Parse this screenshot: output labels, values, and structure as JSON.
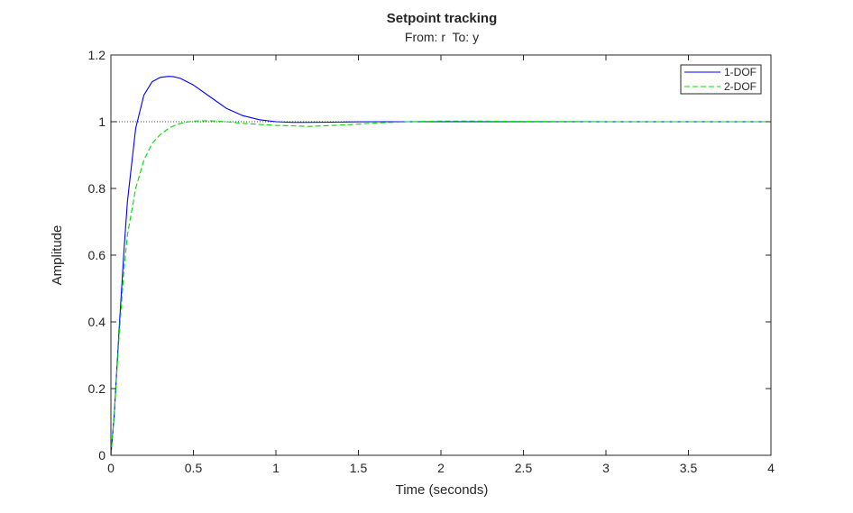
{
  "chart_data": {
    "type": "line",
    "title": "Setpoint tracking",
    "subtitle": "From: r  To: y",
    "xlabel": "Time (seconds)",
    "ylabel": "Amplitude",
    "xlim": [
      0,
      4
    ],
    "ylim": [
      0,
      1.2
    ],
    "x_ticks": [
      "0",
      "0.5",
      "1",
      "1.5",
      "2",
      "2.5",
      "3",
      "3.5",
      "4"
    ],
    "y_ticks": [
      "0",
      "0.2",
      "0.4",
      "0.6",
      "0.8",
      "1",
      "1.2"
    ],
    "grid": false,
    "legend_position": "top-right",
    "reference_line": {
      "y": 1,
      "style": "dotted",
      "color": "#000000"
    },
    "series": [
      {
        "name": "1-DOF",
        "color": "#0000ff",
        "style": "solid",
        "x": [
          0,
          0.02,
          0.05,
          0.08,
          0.1,
          0.15,
          0.2,
          0.25,
          0.3,
          0.35,
          0.38,
          0.42,
          0.5,
          0.6,
          0.7,
          0.8,
          0.9,
          1.0,
          1.1,
          1.2,
          1.4,
          1.6,
          1.8,
          2.0,
          2.2,
          2.5,
          3.0,
          3.5,
          4.0
        ],
        "y": [
          0,
          0.12,
          0.38,
          0.62,
          0.76,
          0.98,
          1.08,
          1.12,
          1.133,
          1.136,
          1.135,
          1.13,
          1.11,
          1.075,
          1.04,
          1.018,
          1.006,
          1.0,
          0.998,
          0.998,
          0.999,
          1.0,
          1.0,
          1.0,
          1.0,
          1.0,
          1.0,
          1.0,
          1.0
        ]
      },
      {
        "name": "2-DOF",
        "color": "#00dd00",
        "style": "dashed",
        "x": [
          0,
          0.02,
          0.05,
          0.08,
          0.1,
          0.15,
          0.2,
          0.25,
          0.3,
          0.35,
          0.4,
          0.45,
          0.5,
          0.6,
          0.7,
          0.8,
          1.0,
          1.2,
          1.4,
          1.6,
          1.8,
          2.0,
          2.2,
          2.5,
          3.0,
          3.5,
          4.0
        ],
        "y": [
          0,
          0.12,
          0.36,
          0.56,
          0.66,
          0.8,
          0.885,
          0.935,
          0.962,
          0.98,
          0.992,
          0.998,
          1.002,
          1.003,
          1.0,
          0.995,
          0.989,
          0.986,
          0.99,
          0.996,
          1.0,
          1.002,
          1.002,
          1.001,
          1.0,
          1.0,
          1.0
        ]
      }
    ]
  }
}
